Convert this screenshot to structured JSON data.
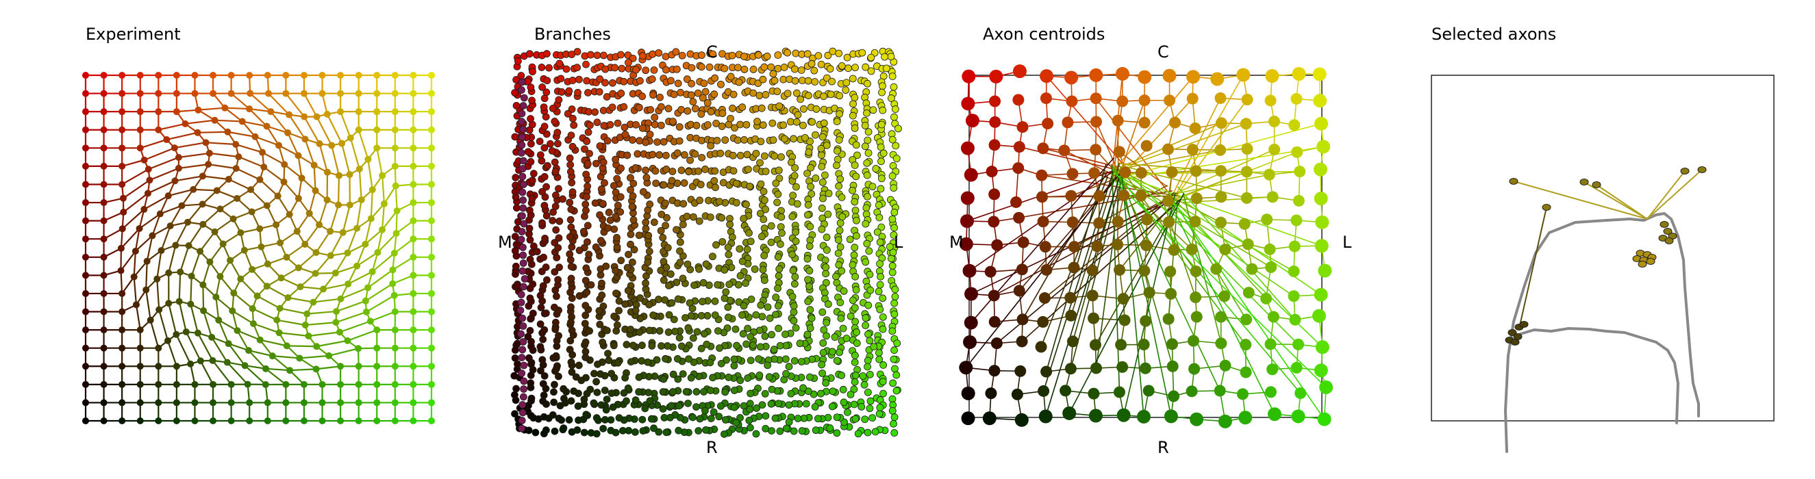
{
  "panels": [
    {
      "id": "experiment",
      "title": "Experiment"
    },
    {
      "id": "branches",
      "title": "Branches",
      "axis_labels": {
        "top": "C",
        "bottom": "R",
        "left": "M",
        "right": "L"
      }
    },
    {
      "id": "centroids",
      "title": "Axon centroids",
      "axis_labels": {
        "top": "C",
        "bottom": "R",
        "left": "M",
        "right": "L"
      }
    },
    {
      "id": "selected",
      "title": "Selected axons"
    }
  ],
  "colors": {
    "gradient_corners": {
      "top_left": "#d40000",
      "top_right": "#e5e500",
      "bottom_left": "#000000",
      "bottom_right": "#33dd00"
    },
    "trace": "#888888",
    "frame": "#222222"
  }
}
